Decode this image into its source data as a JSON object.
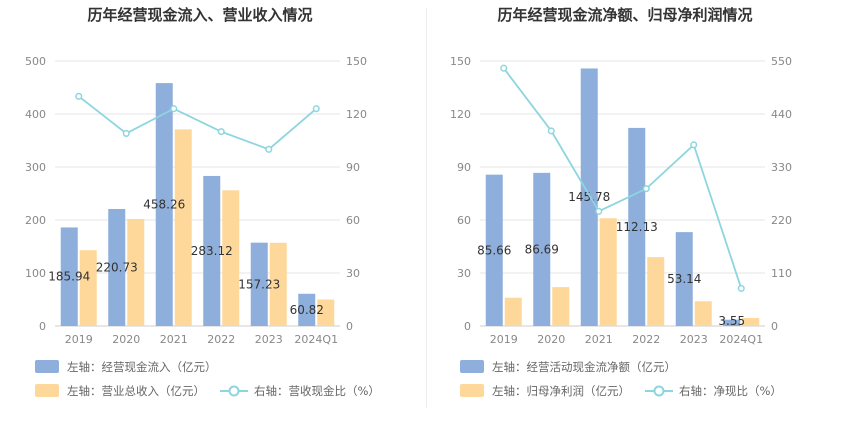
{
  "colors": {
    "bar_primary": "#8eaedb",
    "bar_secondary": "#fdd89a",
    "line": "#8dd5df",
    "grid": "#e4e4e4",
    "axis_text": "#888888",
    "title": "#333333",
    "label_text": "#333333",
    "legend_text": "#666666"
  },
  "chart_data": [
    {
      "type": "bar",
      "title": "历年经营现金流入、营业收入情况",
      "categories": [
        "2019",
        "2020",
        "2021",
        "2022",
        "2023",
        "2024Q1"
      ],
      "ylim_left": [
        0,
        500
      ],
      "yticks_left": [
        0,
        100,
        200,
        300,
        400,
        500
      ],
      "ylim_right": [
        0,
        150
      ],
      "yticks_right": [
        0,
        30,
        60,
        90,
        120,
        150
      ],
      "series": [
        {
          "name": "左轴：经营现金流入（亿元）",
          "kind": "bar",
          "axis": "left",
          "values": [
            185.94,
            220.73,
            458.26,
            283.12,
            157.23,
            60.82
          ],
          "labels": [
            "185.94",
            "220.73",
            "458.26",
            "283.12",
            "157.23",
            "60.82"
          ]
        },
        {
          "name": "左轴：营业总收入（亿元）",
          "kind": "bar",
          "axis": "left",
          "values": [
            143,
            202,
            371,
            256,
            157,
            50
          ]
        },
        {
          "name": "右轴：营收现金比（%）",
          "kind": "line",
          "axis": "right",
          "values": [
            130,
            109,
            123,
            110,
            100,
            123
          ]
        }
      ]
    },
    {
      "type": "bar",
      "title": "历年经营现金流净额、归母净利润情况",
      "categories": [
        "2019",
        "2020",
        "2021",
        "2022",
        "2023",
        "2024Q1"
      ],
      "ylim_left": [
        0,
        150
      ],
      "yticks_left": [
        0,
        30,
        60,
        90,
        120,
        150
      ],
      "ylim_right": [
        0,
        550
      ],
      "yticks_right": [
        0,
        110,
        220,
        330,
        440,
        550
      ],
      "series": [
        {
          "name": "左轴：经营活动现金流净额（亿元）",
          "kind": "bar",
          "axis": "left",
          "values": [
            85.66,
            86.69,
            145.78,
            112.13,
            53.14,
            3.55
          ],
          "labels": [
            "85.66",
            "86.69",
            "145.78",
            "112.13",
            "53.14",
            "3.55"
          ]
        },
        {
          "name": "左轴：归母净利润（亿元）",
          "kind": "bar",
          "axis": "left",
          "values": [
            16,
            22,
            61,
            39,
            14,
            4.5
          ]
        },
        {
          "name": "右轴：净现比（%）",
          "kind": "line",
          "axis": "right",
          "values": [
            535,
            405,
            238,
            285,
            376,
            78
          ]
        }
      ]
    }
  ]
}
